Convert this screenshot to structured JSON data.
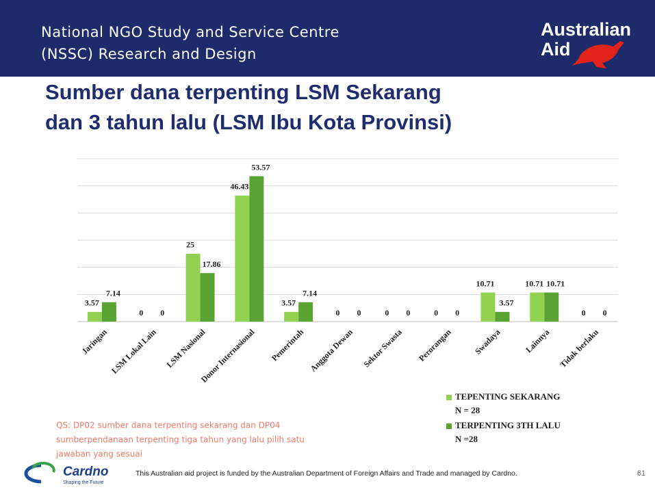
{
  "header": {
    "lines": [
      "National NGO Study and Service Centre",
      "(NSSC) Research and Design"
    ],
    "logo": [
      "Australian",
      "Aid"
    ]
  },
  "chart_data": {
    "type": "bar",
    "title_lines": [
      "Sumber dana terpenting LSM Sekarang",
      "dan 3 tahun lalu (LSM Ibu Kota Provinsi)"
    ],
    "categories": [
      "Jaringan",
      "LSM Lokal Lain",
      "LSM Nasional",
      "Donor Internasional",
      "Pemerintah",
      "Anggota Dewan",
      "Sektor Swasta",
      "Perorangan",
      "Swadaya",
      "Lainnya",
      "Tidak berlaku"
    ],
    "series": [
      {
        "name": "TEPENTING SEKARANG",
        "n_label": "N = 28",
        "color": "#92d050",
        "values": [
          3.57,
          0,
          25,
          46.43,
          3.57,
          0,
          0,
          0,
          10.71,
          10.71,
          0
        ]
      },
      {
        "name": "TERPENTING 3TH LALU",
        "n_label": "N =28",
        "color": "#5aa332",
        "values": [
          7.14,
          0,
          17.86,
          53.57,
          7.14,
          0,
          0,
          0,
          3.57,
          10.71,
          0
        ]
      }
    ],
    "ylim": [
      0,
      60
    ],
    "gridlines": [
      0,
      10,
      20,
      30,
      40,
      50,
      60
    ],
    "grid": true
  },
  "note_lines": [
    "QS: DP02 sumber dana terpenting sekarang dan DP04",
    "sumberpendanaan terpenting tiga tahun yang lalu  pilih satu",
    "jawaban yang sesuai"
  ],
  "footer": {
    "brand": "Cardno",
    "tagline": "Shaping the Future",
    "text": "This Australian aid project is funded by the Australian Department of Foreign Affairs and Trade and managed by Cardno.",
    "page": "61"
  }
}
